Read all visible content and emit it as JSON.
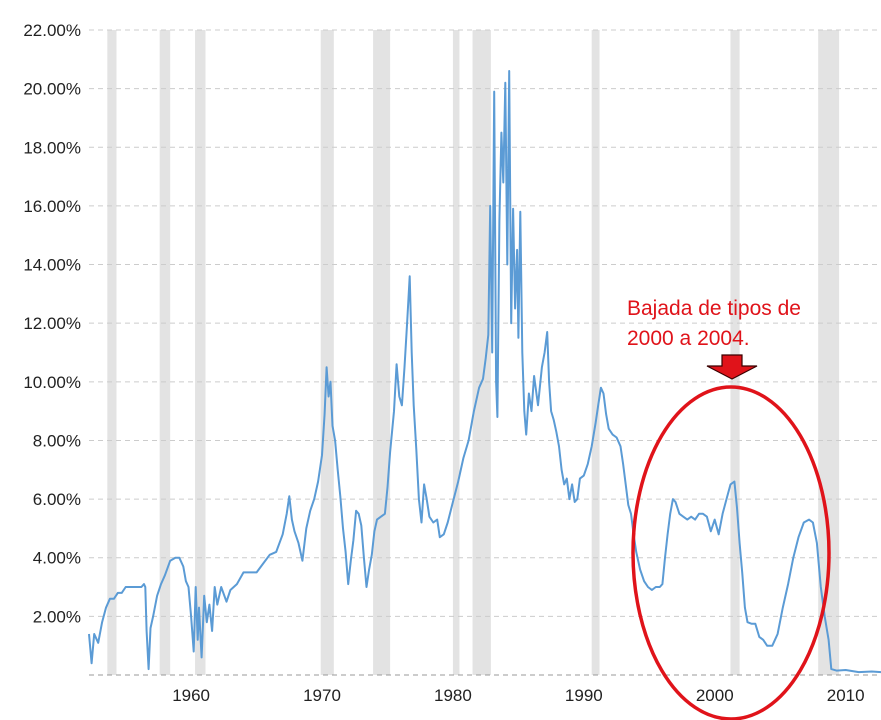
{
  "chart_data": {
    "type": "line",
    "xlim": [
      1952.2,
      2012.7
    ],
    "ylim": [
      0,
      22
    ],
    "grid": "horizontal dashed",
    "colors": {
      "line": "#5b9bd5",
      "recession": "#e3e3e3",
      "annotation": "#e0131a",
      "grid": "#cccccc"
    },
    "y_tick_labels": [
      {
        "value": 2,
        "label": "2.00%"
      },
      {
        "value": 4,
        "label": "4.00%"
      },
      {
        "value": 6,
        "label": "6.00%"
      },
      {
        "value": 8,
        "label": "8.00%"
      },
      {
        "value": 10,
        "label": "10.00%"
      },
      {
        "value": 12,
        "label": "12.00%"
      },
      {
        "value": 14,
        "label": "14.00%"
      },
      {
        "value": 16,
        "label": "16.00%"
      },
      {
        "value": 18,
        "label": "18.00%"
      },
      {
        "value": 20,
        "label": "20.00%"
      },
      {
        "value": 22,
        "label": "22.00%"
      }
    ],
    "x_tick_labels": [
      {
        "value": 1960,
        "label": "1960"
      },
      {
        "value": 1970,
        "label": "1970"
      },
      {
        "value": 1980,
        "label": "1980"
      },
      {
        "value": 1990,
        "label": "1990"
      },
      {
        "value": 2000,
        "label": "2000"
      },
      {
        "value": 2010,
        "label": "2010"
      }
    ],
    "recessions": [
      [
        1953.6,
        1954.3
      ],
      [
        1957.6,
        1958.4
      ],
      [
        1960.3,
        1961.1
      ],
      [
        1969.9,
        1970.9
      ],
      [
        1973.9,
        1975.2
      ],
      [
        1980.0,
        1980.5
      ],
      [
        1981.5,
        1982.9
      ],
      [
        1990.6,
        1991.2
      ],
      [
        2001.2,
        2001.9
      ],
      [
        2007.9,
        2009.5
      ]
    ],
    "series": [
      {
        "points": [
          [
            1952.2,
            1.4
          ],
          [
            1952.4,
            0.4
          ],
          [
            1952.6,
            1.4
          ],
          [
            1952.9,
            1.1
          ],
          [
            1953.2,
            1.8
          ],
          [
            1953.5,
            2.3
          ],
          [
            1953.8,
            2.6
          ],
          [
            1954.1,
            2.6
          ],
          [
            1954.4,
            2.8
          ],
          [
            1954.7,
            2.8
          ],
          [
            1955.0,
            3.0
          ],
          [
            1955.4,
            3.0
          ],
          [
            1955.8,
            3.0
          ],
          [
            1956.2,
            3.0
          ],
          [
            1956.4,
            3.1
          ],
          [
            1956.5,
            3.0
          ],
          [
            1956.6,
            1.5
          ],
          [
            1956.75,
            0.2
          ],
          [
            1956.9,
            1.6
          ],
          [
            1957.1,
            2.0
          ],
          [
            1957.4,
            2.7
          ],
          [
            1957.7,
            3.1
          ],
          [
            1958.0,
            3.4
          ],
          [
            1958.4,
            3.9
          ],
          [
            1958.8,
            4.0
          ],
          [
            1959.1,
            4.0
          ],
          [
            1959.4,
            3.7
          ],
          [
            1959.6,
            3.2
          ],
          [
            1959.8,
            3.0
          ],
          [
            1960.0,
            2.0
          ],
          [
            1960.2,
            0.8
          ],
          [
            1960.35,
            3.0
          ],
          [
            1960.5,
            1.2
          ],
          [
            1960.6,
            2.3
          ],
          [
            1960.8,
            0.6
          ],
          [
            1961.0,
            2.7
          ],
          [
            1961.2,
            1.8
          ],
          [
            1961.4,
            2.4
          ],
          [
            1961.6,
            1.5
          ],
          [
            1961.8,
            3.0
          ],
          [
            1962.0,
            2.4
          ],
          [
            1962.3,
            3.0
          ],
          [
            1962.7,
            2.5
          ],
          [
            1963.0,
            2.9
          ],
          [
            1963.5,
            3.1
          ],
          [
            1964.0,
            3.5
          ],
          [
            1964.5,
            3.5
          ],
          [
            1965.0,
            3.5
          ],
          [
            1965.5,
            3.8
          ],
          [
            1966.0,
            4.1
          ],
          [
            1966.5,
            4.2
          ],
          [
            1967.0,
            4.8
          ],
          [
            1967.3,
            5.5
          ],
          [
            1967.5,
            6.1
          ],
          [
            1967.7,
            5.3
          ],
          [
            1967.9,
            4.9
          ],
          [
            1968.2,
            4.5
          ],
          [
            1968.5,
            3.9
          ],
          [
            1968.8,
            5.0
          ],
          [
            1969.1,
            5.6
          ],
          [
            1969.4,
            6.0
          ],
          [
            1969.7,
            6.6
          ],
          [
            1970.0,
            7.5
          ],
          [
            1970.2,
            8.9
          ],
          [
            1970.35,
            10.5
          ],
          [
            1970.5,
            9.5
          ],
          [
            1970.65,
            10.0
          ],
          [
            1970.8,
            8.5
          ],
          [
            1971.0,
            8.0
          ],
          [
            1971.2,
            7.0
          ],
          [
            1971.4,
            6.1
          ],
          [
            1971.6,
            5.0
          ],
          [
            1971.8,
            4.2
          ],
          [
            1972.0,
            3.1
          ],
          [
            1972.2,
            3.9
          ],
          [
            1972.4,
            4.6
          ],
          [
            1972.6,
            5.6
          ],
          [
            1972.8,
            5.5
          ],
          [
            1973.0,
            5.1
          ],
          [
            1973.2,
            4.0
          ],
          [
            1973.4,
            3.0
          ],
          [
            1973.6,
            3.6
          ],
          [
            1973.8,
            4.1
          ],
          [
            1974.0,
            4.9
          ],
          [
            1974.2,
            5.3
          ],
          [
            1974.5,
            5.4
          ],
          [
            1974.8,
            5.5
          ],
          [
            1975.0,
            6.4
          ],
          [
            1975.2,
            7.6
          ],
          [
            1975.5,
            9.0
          ],
          [
            1975.7,
            10.6
          ],
          [
            1975.9,
            9.5
          ],
          [
            1976.1,
            9.2
          ],
          [
            1976.3,
            10.5
          ],
          [
            1976.5,
            12.0
          ],
          [
            1976.7,
            13.6
          ],
          [
            1976.85,
            11.0
          ],
          [
            1977.0,
            9.2
          ],
          [
            1977.2,
            7.7
          ],
          [
            1977.4,
            6.0
          ],
          [
            1977.6,
            5.2
          ],
          [
            1977.8,
            6.5
          ],
          [
            1978.0,
            6.0
          ],
          [
            1978.2,
            5.4
          ],
          [
            1978.5,
            5.2
          ],
          [
            1978.8,
            5.3
          ],
          [
            1979.0,
            4.7
          ],
          [
            1979.3,
            4.8
          ],
          [
            1979.6,
            5.2
          ],
          [
            1980.0,
            5.9
          ],
          [
            1980.4,
            6.6
          ],
          [
            1980.8,
            7.4
          ],
          [
            1981.2,
            8.0
          ],
          [
            1981.6,
            9.0
          ],
          [
            1982.0,
            9.8
          ],
          [
            1982.3,
            10.1
          ],
          [
            1982.5,
            10.8
          ],
          [
            1982.7,
            11.6
          ],
          [
            1982.85,
            16.0
          ],
          [
            1983.0,
            11.0
          ],
          [
            1983.15,
            19.9
          ],
          [
            1983.3,
            10.0
          ],
          [
            1983.4,
            8.8
          ],
          [
            1983.55,
            15.5
          ],
          [
            1983.7,
            18.5
          ],
          [
            1983.85,
            16.8
          ],
          [
            1984.0,
            20.2
          ],
          [
            1984.15,
            14.0
          ],
          [
            1984.3,
            20.6
          ],
          [
            1984.45,
            12.0
          ],
          [
            1984.6,
            15.9
          ],
          [
            1984.75,
            12.5
          ],
          [
            1984.9,
            14.5
          ],
          [
            1985.0,
            11.5
          ],
          [
            1985.15,
            15.8
          ],
          [
            1985.3,
            11.0
          ],
          [
            1985.45,
            9.0
          ],
          [
            1985.6,
            8.2
          ],
          [
            1985.8,
            9.6
          ],
          [
            1986.0,
            9.0
          ],
          [
            1986.2,
            10.2
          ],
          [
            1986.5,
            9.2
          ],
          [
            1986.8,
            10.5
          ],
          [
            1987.0,
            11.0
          ],
          [
            1987.2,
            11.7
          ],
          [
            1987.35,
            10.0
          ],
          [
            1987.5,
            9.0
          ],
          [
            1987.7,
            8.7
          ],
          [
            1987.9,
            8.3
          ],
          [
            1988.1,
            7.8
          ],
          [
            1988.3,
            7.0
          ],
          [
            1988.5,
            6.5
          ],
          [
            1988.7,
            6.7
          ],
          [
            1988.9,
            6.0
          ],
          [
            1989.1,
            6.5
          ],
          [
            1989.3,
            5.9
          ],
          [
            1989.5,
            6.0
          ],
          [
            1989.7,
            6.7
          ],
          [
            1990.0,
            6.8
          ],
          [
            1990.3,
            7.2
          ],
          [
            1990.6,
            7.8
          ],
          [
            1990.9,
            8.6
          ],
          [
            1991.1,
            9.2
          ],
          [
            1991.3,
            9.8
          ],
          [
            1991.5,
            9.6
          ],
          [
            1991.7,
            8.9
          ],
          [
            1991.9,
            8.4
          ],
          [
            1992.2,
            8.2
          ],
          [
            1992.5,
            8.1
          ],
          [
            1992.8,
            7.8
          ],
          [
            1993.0,
            7.2
          ],
          [
            1993.2,
            6.5
          ],
          [
            1993.4,
            5.8
          ],
          [
            1993.6,
            5.5
          ],
          [
            1993.8,
            4.8
          ],
          [
            1994.0,
            4.2
          ],
          [
            1994.3,
            3.6
          ],
          [
            1994.6,
            3.2
          ],
          [
            1994.9,
            3.0
          ],
          [
            1995.2,
            2.9
          ],
          [
            1995.5,
            3.0
          ],
          [
            1995.8,
            3.0
          ],
          [
            1996.0,
            3.1
          ],
          [
            1996.2,
            4.0
          ],
          [
            1996.4,
            4.8
          ],
          [
            1996.6,
            5.5
          ],
          [
            1996.8,
            6.0
          ],
          [
            1997.0,
            5.9
          ],
          [
            1997.3,
            5.5
          ],
          [
            1997.6,
            5.4
          ],
          [
            1997.9,
            5.3
          ],
          [
            1998.2,
            5.4
          ],
          [
            1998.5,
            5.3
          ],
          [
            1998.8,
            5.5
          ],
          [
            1999.1,
            5.5
          ],
          [
            1999.4,
            5.4
          ],
          [
            1999.7,
            4.9
          ],
          [
            2000.0,
            5.3
          ],
          [
            2000.3,
            4.8
          ],
          [
            2000.6,
            5.5
          ],
          [
            2000.9,
            6.0
          ],
          [
            2001.2,
            6.5
          ],
          [
            2001.5,
            6.6
          ],
          [
            2001.7,
            5.7
          ],
          [
            2001.9,
            4.5
          ],
          [
            2002.1,
            3.5
          ],
          [
            2002.3,
            2.3
          ],
          [
            2002.5,
            1.8
          ],
          [
            2002.8,
            1.75
          ],
          [
            2003.1,
            1.75
          ],
          [
            2003.4,
            1.3
          ],
          [
            2003.7,
            1.2
          ],
          [
            2004.0,
            1.0
          ],
          [
            2004.4,
            1.0
          ],
          [
            2004.8,
            1.4
          ],
          [
            2005.2,
            2.3
          ],
          [
            2005.6,
            3.1
          ],
          [
            2006.0,
            4.0
          ],
          [
            2006.4,
            4.7
          ],
          [
            2006.8,
            5.2
          ],
          [
            2007.2,
            5.3
          ],
          [
            2007.5,
            5.2
          ],
          [
            2007.8,
            4.5
          ],
          [
            2008.1,
            3.0
          ],
          [
            2008.4,
            2.0
          ],
          [
            2008.7,
            1.2
          ],
          [
            2008.9,
            0.2
          ],
          [
            2009.3,
            0.15
          ],
          [
            2010.0,
            0.17
          ],
          [
            2011.0,
            0.1
          ],
          [
            2012.0,
            0.12
          ],
          [
            2012.7,
            0.1
          ]
        ]
      }
    ],
    "annotations": [
      {
        "line1": "Bajada de tipos de",
        "line2": "2000 a 2004."
      }
    ]
  }
}
